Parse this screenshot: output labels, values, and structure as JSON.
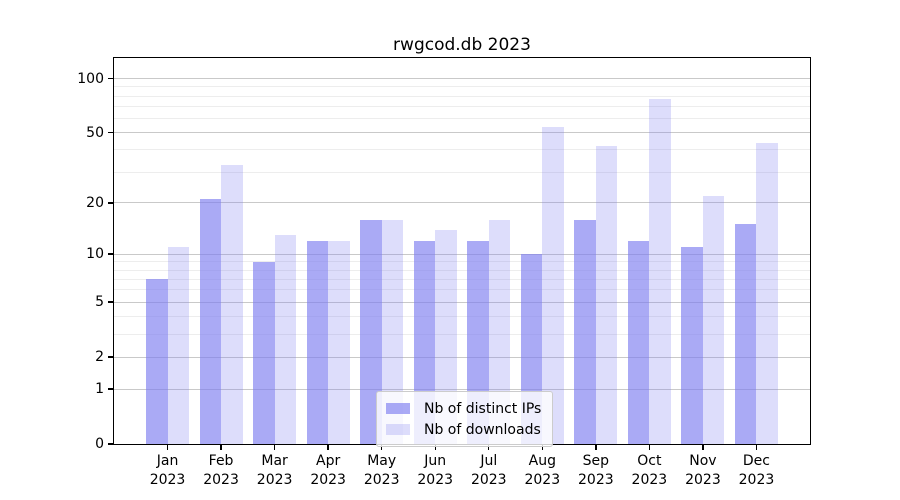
{
  "figure": {
    "background": "#ffffff"
  },
  "chart_data": {
    "type": "bar",
    "title": "rwgcod.db 2023",
    "categories": [
      "Jan 2023",
      "Feb 2023",
      "Mar 2023",
      "Apr 2023",
      "May 2023",
      "Jun 2023",
      "Jul 2023",
      "Aug 2023",
      "Sep 2023",
      "Oct 2023",
      "Nov 2023",
      "Dec 2023"
    ],
    "x_tick_months": [
      "Jan",
      "Feb",
      "Mar",
      "Apr",
      "May",
      "Jun",
      "Jul",
      "Aug",
      "Sep",
      "Oct",
      "Nov",
      "Dec"
    ],
    "x_tick_year": "2023",
    "series": [
      {
        "key": "distinct-ips",
        "name": "Nb of distinct IPs",
        "color": "#7d7df0",
        "fill_opacity": 0.65,
        "values": [
          7,
          21,
          9,
          12,
          16,
          12,
          12,
          10,
          16,
          12,
          11,
          15
        ]
      },
      {
        "key": "downloads",
        "name": "Nb of downloads",
        "color": "#7d7df0",
        "fill_opacity": 0.26,
        "values": [
          11,
          33,
          13,
          12,
          16,
          14,
          16,
          54,
          42,
          77,
          22,
          44
        ]
      }
    ],
    "xlabel": "",
    "ylabel": "",
    "yscale": "log1p",
    "ylim": [
      0,
      130
    ],
    "y_major_ticks": [
      100,
      50,
      20,
      10,
      5,
      2,
      1,
      0
    ],
    "y_minor_ticks": [
      3,
      4,
      6,
      7,
      8,
      9,
      30,
      40,
      60,
      70,
      80,
      90
    ],
    "grid": true,
    "legend_position": "bottom-center"
  },
  "colors": {
    "major_grid": "#c9c9c9",
    "minor_grid": "#ededed",
    "axis": "#000000",
    "legend_border": "#cccccc",
    "legend_background": "rgba(255,255,255,0.8)",
    "text": "#000000"
  }
}
